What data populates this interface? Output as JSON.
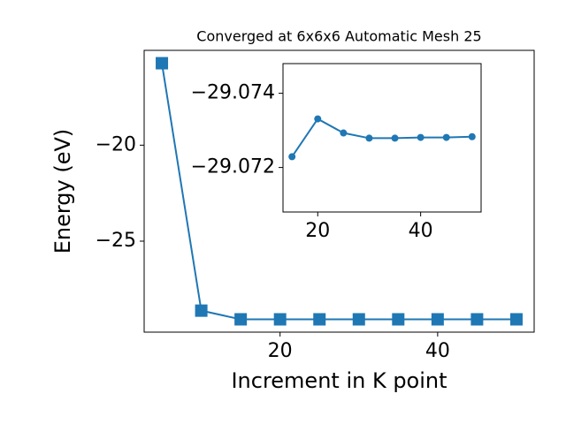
{
  "chart_data": [
    {
      "type": "line",
      "title": "Converged at 6x6x6 Automatic Mesh 25",
      "x_label": "Increment in K point",
      "y_label": "Energy (eV)",
      "x": [
        5,
        10,
        15,
        20,
        25,
        30,
        35,
        40,
        45,
        50
      ],
      "series": [
        {
          "color": "#1f77b4",
          "values": [
            -15.73,
            -28.62,
            -29.0723,
            -29.0733,
            -29.0729,
            -29.0728,
            -29.0728,
            -29.0728,
            -29.0728,
            -29.0728
          ]
        }
      ],
      "marker": "square",
      "xlim": [
        2.75,
        52.25
      ],
      "xticks": [
        20,
        40
      ],
      "ylim": [
        -29.74,
        -15.06
      ],
      "yticks": [
        {
          "value": -25,
          "label": "−25"
        },
        {
          "value": -20,
          "label": "−20"
        }
      ]
    },
    {
      "type": "line",
      "x": [
        15,
        20,
        25,
        30,
        35,
        40,
        45,
        50
      ],
      "series": [
        {
          "color": "#1f77b4",
          "values": [
            -29.07229,
            -29.07331,
            -29.07293,
            -29.07279,
            -29.07279,
            -29.07281,
            -29.07281,
            -29.07283
          ]
        }
      ],
      "marker": "circle",
      "xlim": [
        13.25,
        51.75
      ],
      "xticks": [
        20,
        40
      ],
      "ylim": [
        -29.0708,
        -29.0748
      ],
      "yticks": [
        {
          "value": -29.074,
          "label": "−29.074"
        },
        {
          "value": -29.072,
          "label": "−29.072"
        }
      ]
    }
  ]
}
